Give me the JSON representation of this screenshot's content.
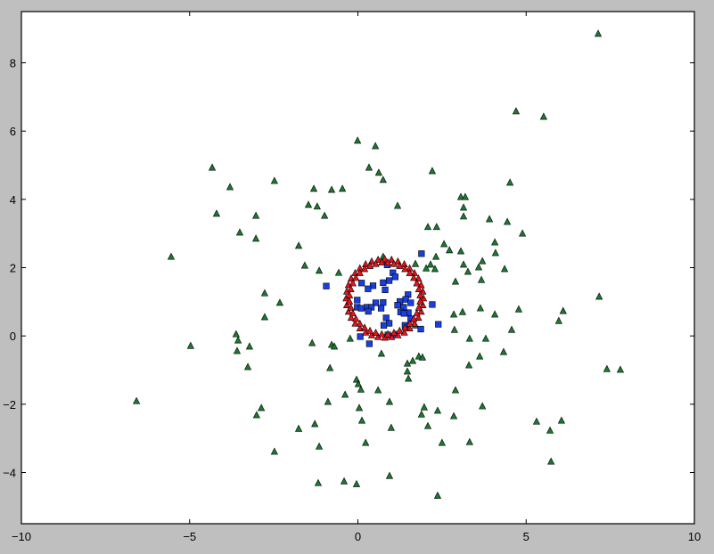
{
  "chart_data": {
    "type": "scatter",
    "title": "",
    "xlabel": "",
    "ylabel": "",
    "xlim": [
      -10,
      10
    ],
    "ylim": [
      -5.5,
      9.5
    ],
    "xticks": [
      -10,
      -5,
      0,
      5,
      10
    ],
    "yticks": [
      -4,
      -2,
      0,
      2,
      4,
      6,
      8
    ],
    "xtick_labels": [
      "−10",
      "−5",
      "0",
      "5",
      "10"
    ],
    "ytick_labels": [
      "−4",
      "−2",
      "0",
      "2",
      "4",
      "6",
      "8"
    ],
    "grid": false,
    "legend": "none",
    "series": [
      {
        "marker": "triangle",
        "color": "#1a7a2e",
        "points": [
          [
            7.14,
            8.85
          ],
          [
            4.7,
            6.58
          ],
          [
            5.52,
            6.42
          ],
          [
            -0.01,
            5.72
          ],
          [
            0.52,
            5.56
          ],
          [
            0.33,
            4.93
          ],
          [
            0.62,
            4.78
          ],
          [
            0.75,
            4.57
          ],
          [
            2.21,
            4.83
          ],
          [
            -4.33,
            4.93
          ],
          [
            -2.48,
            4.54
          ],
          [
            -3.8,
            4.36
          ],
          [
            -1.31,
            4.31
          ],
          [
            -0.78,
            4.28
          ],
          [
            -0.46,
            4.31
          ],
          [
            4.52,
            4.49
          ],
          [
            3.06,
            4.07
          ],
          [
            3.19,
            4.07
          ],
          [
            3.14,
            3.76
          ],
          [
            3.14,
            3.5
          ],
          [
            1.18,
            3.81
          ],
          [
            -4.2,
            3.58
          ],
          [
            -3.03,
            3.52
          ],
          [
            -1.47,
            3.84
          ],
          [
            -1.21,
            3.79
          ],
          [
            -0.99,
            3.52
          ],
          [
            3.91,
            3.42
          ],
          [
            4.44,
            3.34
          ],
          [
            2.08,
            3.19
          ],
          [
            2.34,
            3.19
          ],
          [
            -3.51,
            3.03
          ],
          [
            -3.03,
            2.85
          ],
          [
            4.89,
            3.0
          ],
          [
            2.56,
            2.69
          ],
          [
            4.07,
            2.74
          ],
          [
            2.72,
            2.51
          ],
          [
            3.06,
            2.48
          ],
          [
            4.09,
            2.43
          ],
          [
            -5.55,
            2.32
          ],
          [
            -1.76,
            2.64
          ],
          [
            2.32,
            2.32
          ],
          [
            3.14,
            2.09
          ],
          [
            3.7,
            2.19
          ],
          [
            -1.58,
            2.06
          ],
          [
            1.71,
            2.11
          ],
          [
            2.16,
            2.09
          ],
          [
            2.03,
            1.98
          ],
          [
            2.29,
            1.96
          ],
          [
            3.59,
            2.01
          ],
          [
            3.27,
            1.88
          ],
          [
            -1.15,
            1.91
          ],
          [
            -0.57,
            1.85
          ],
          [
            4.36,
            1.96
          ],
          [
            2.9,
            1.59
          ],
          [
            3.67,
            1.64
          ],
          [
            -2.77,
            1.25
          ],
          [
            -2.32,
            0.97
          ],
          [
            7.17,
            1.15
          ],
          [
            4.78,
            0.78
          ],
          [
            6.1,
            0.73
          ],
          [
            3.64,
            0.81
          ],
          [
            3.11,
            0.7
          ],
          [
            5.97,
            0.44
          ],
          [
            -2.77,
            0.55
          ],
          [
            4.07,
            0.63
          ],
          [
            2.85,
            0.63
          ],
          [
            1.71,
            0.31
          ],
          [
            2.87,
            0.18
          ],
          [
            -3.62,
            0.05
          ],
          [
            4.57,
            0.18
          ],
          [
            3.8,
            -0.08
          ],
          [
            3.32,
            -0.08
          ],
          [
            -4.97,
            -0.29
          ],
          [
            -3.56,
            -0.13
          ],
          [
            -3.22,
            -0.31
          ],
          [
            -3.59,
            -0.44
          ],
          [
            -1.36,
            -0.21
          ],
          [
            -0.78,
            -0.26
          ],
          [
            -0.7,
            -0.31
          ],
          [
            -0.23,
            -0.08
          ],
          [
            0.7,
            -0.52
          ],
          [
            1.81,
            -0.6
          ],
          [
            4.33,
            -0.47
          ],
          [
            1.63,
            -0.73
          ],
          [
            1.92,
            -0.63
          ],
          [
            3.62,
            -0.6
          ],
          [
            -3.27,
            -0.91
          ],
          [
            1.47,
            -0.81
          ],
          [
            3.3,
            -0.86
          ],
          [
            7.4,
            -0.97
          ],
          [
            7.8,
            -0.99
          ],
          [
            1.47,
            -1.04
          ],
          [
            -0.83,
            -0.94
          ],
          [
            -0.04,
            -1.28
          ],
          [
            1.5,
            -1.25
          ],
          [
            0.01,
            -1.41
          ],
          [
            0.09,
            -1.57
          ],
          [
            0.6,
            -1.59
          ],
          [
            -0.38,
            -1.72
          ],
          [
            2.9,
            -1.59
          ],
          [
            -6.58,
            -1.91
          ],
          [
            -0.89,
            -1.93
          ],
          [
            0.94,
            -1.93
          ],
          [
            3.7,
            -2.06
          ],
          [
            -2.87,
            -2.11
          ],
          [
            -3.01,
            -2.32
          ],
          [
            1.97,
            -2.09
          ],
          [
            2.37,
            -2.19
          ],
          [
            1.89,
            -2.3
          ],
          [
            2.85,
            -2.35
          ],
          [
            0.04,
            -2.11
          ],
          [
            -1.28,
            -2.58
          ],
          [
            0.12,
            -2.48
          ],
          [
            0.99,
            -2.69
          ],
          [
            2.08,
            -2.64
          ],
          [
            6.05,
            -2.48
          ],
          [
            5.31,
            -2.51
          ],
          [
            5.71,
            -2.77
          ],
          [
            -1.76,
            -2.72
          ],
          [
            -1.15,
            -3.24
          ],
          [
            3.32,
            -3.11
          ],
          [
            0.23,
            -3.13
          ],
          [
            2.5,
            -3.13
          ],
          [
            -2.48,
            -3.39
          ],
          [
            5.74,
            -3.68
          ],
          [
            0.94,
            -4.1
          ],
          [
            -1.18,
            -4.31
          ],
          [
            -0.41,
            -4.26
          ],
          [
            -0.04,
            -4.34
          ],
          [
            2.37,
            -4.68
          ],
          [
            0.75,
            2.32
          ]
        ]
      },
      {
        "marker": "square",
        "color": "#1a3fe0",
        "points": [
          [
            1.89,
            2.41
          ],
          [
            0.87,
            2.08
          ],
          [
            1.04,
            1.85
          ],
          [
            1.11,
            1.73
          ],
          [
            0.93,
            1.62
          ],
          [
            0.75,
            1.56
          ],
          [
            0.11,
            1.55
          ],
          [
            0.45,
            1.47
          ],
          [
            0.3,
            1.38
          ],
          [
            0.81,
            1.35
          ],
          [
            1.49,
            1.21
          ],
          [
            -0.02,
            1.05
          ],
          [
            1.42,
            1.07
          ],
          [
            1.57,
            0.97
          ],
          [
            0.53,
            0.97
          ],
          [
            0.75,
            0.98
          ],
          [
            1.25,
            1.01
          ],
          [
            1.18,
            0.9
          ],
          [
            -0.02,
            0.84
          ],
          [
            0.1,
            0.81
          ],
          [
            0.27,
            0.84
          ],
          [
            0.4,
            0.84
          ],
          [
            0.31,
            0.72
          ],
          [
            0.69,
            0.81
          ],
          [
            1.36,
            0.84
          ],
          [
            1.27,
            0.7
          ],
          [
            1.5,
            0.68
          ],
          [
            1.37,
            0.66
          ],
          [
            2.21,
            0.92
          ],
          [
            0.84,
            0.53
          ],
          [
            0.93,
            0.37
          ],
          [
            0.77,
            0.31
          ],
          [
            1.57,
            0.5
          ],
          [
            2.39,
            0.34
          ],
          [
            1.4,
            0.31
          ],
          [
            1.87,
            0.2
          ],
          [
            0.07,
            -0.02
          ],
          [
            0.34,
            -0.23
          ],
          [
            0.89,
            0.03
          ],
          [
            1.14,
            0.05
          ],
          [
            -0.94,
            1.46
          ]
        ]
      },
      {
        "marker": "triangle",
        "color": "#e8141c",
        "points": [
          [
            1.95,
            1.1
          ],
          [
            1.93,
            1.3
          ],
          [
            1.88,
            1.49
          ],
          [
            1.8,
            1.68
          ],
          [
            1.68,
            1.84
          ],
          [
            1.54,
            1.98
          ],
          [
            1.38,
            2.1
          ],
          [
            1.19,
            2.18
          ],
          [
            1.0,
            2.23
          ],
          [
            0.8,
            2.25
          ],
          [
            0.6,
            2.23
          ],
          [
            0.41,
            2.18
          ],
          [
            0.23,
            2.1
          ],
          [
            0.06,
            1.98
          ],
          [
            -0.08,
            1.84
          ],
          [
            -0.2,
            1.68
          ],
          [
            -0.28,
            1.49
          ],
          [
            -0.33,
            1.3
          ],
          [
            -0.35,
            1.1
          ],
          [
            -0.33,
            0.9
          ],
          [
            -0.28,
            0.71
          ],
          [
            -0.2,
            0.53
          ],
          [
            -0.08,
            0.36
          ],
          [
            0.06,
            0.22
          ],
          [
            0.23,
            0.1
          ],
          [
            0.41,
            0.02
          ],
          [
            0.6,
            -0.03
          ],
          [
            0.8,
            -0.05
          ],
          [
            1.0,
            -0.03
          ],
          [
            1.19,
            0.02
          ],
          [
            1.38,
            0.1
          ],
          [
            1.54,
            0.22
          ],
          [
            1.68,
            0.36
          ],
          [
            1.8,
            0.53
          ],
          [
            1.88,
            0.71
          ],
          [
            1.93,
            0.9
          ],
          [
            1.85,
            1.19
          ],
          [
            1.81,
            1.37
          ],
          [
            1.75,
            1.54
          ],
          [
            1.66,
            1.7
          ],
          [
            1.54,
            1.84
          ],
          [
            1.4,
            1.96
          ],
          [
            1.24,
            2.05
          ],
          [
            1.07,
            2.11
          ],
          [
            0.89,
            2.15
          ],
          [
            0.71,
            2.15
          ],
          [
            0.53,
            2.11
          ],
          [
            0.36,
            2.05
          ],
          [
            0.2,
            1.96
          ],
          [
            0.06,
            1.84
          ],
          [
            -0.06,
            1.7
          ],
          [
            -0.15,
            1.54
          ],
          [
            -0.21,
            1.37
          ],
          [
            -0.25,
            1.19
          ],
          [
            -0.25,
            1.01
          ],
          [
            -0.21,
            0.83
          ],
          [
            -0.15,
            0.66
          ],
          [
            -0.06,
            0.5
          ],
          [
            0.06,
            0.36
          ],
          [
            0.2,
            0.24
          ],
          [
            0.36,
            0.15
          ],
          [
            0.53,
            0.09
          ],
          [
            0.71,
            0.05
          ],
          [
            0.89,
            0.05
          ],
          [
            1.07,
            0.09
          ],
          [
            1.24,
            0.15
          ],
          [
            1.4,
            0.24
          ],
          [
            1.54,
            0.36
          ],
          [
            1.66,
            0.5
          ],
          [
            1.75,
            0.66
          ],
          [
            1.81,
            0.83
          ],
          [
            1.85,
            1.01
          ]
        ]
      }
    ]
  }
}
